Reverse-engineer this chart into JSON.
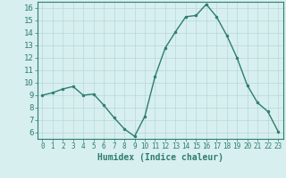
{
  "x": [
    0,
    1,
    2,
    3,
    4,
    5,
    6,
    7,
    8,
    9,
    10,
    11,
    12,
    13,
    14,
    15,
    16,
    17,
    18,
    19,
    20,
    21,
    22,
    23
  ],
  "y": [
    9.0,
    9.2,
    9.5,
    9.7,
    9.0,
    9.1,
    8.2,
    7.2,
    6.3,
    5.7,
    7.3,
    10.5,
    12.8,
    14.1,
    15.3,
    15.4,
    16.3,
    15.3,
    13.8,
    12.0,
    9.8,
    8.4,
    7.7,
    6.1
  ],
  "xlabel": "Humidex (Indice chaleur)",
  "line_color": "#2e7d6e",
  "marker": "o",
  "marker_size": 2.0,
  "bg_color": "#d7efef",
  "grid_color": "#b8d8d8",
  "ylim": [
    5.5,
    16.5
  ],
  "xlim": [
    -0.5,
    23.5
  ],
  "yticks": [
    6,
    7,
    8,
    9,
    10,
    11,
    12,
    13,
    14,
    15,
    16
  ],
  "xticks": [
    0,
    1,
    2,
    3,
    4,
    5,
    6,
    7,
    8,
    9,
    10,
    11,
    12,
    13,
    14,
    15,
    16,
    17,
    18,
    19,
    20,
    21,
    22,
    23
  ],
  "tick_color": "#2e7d6e",
  "label_color": "#2e7d6e",
  "xlabel_fontsize": 7,
  "xtick_fontsize": 5.5,
  "ytick_fontsize": 6.5
}
